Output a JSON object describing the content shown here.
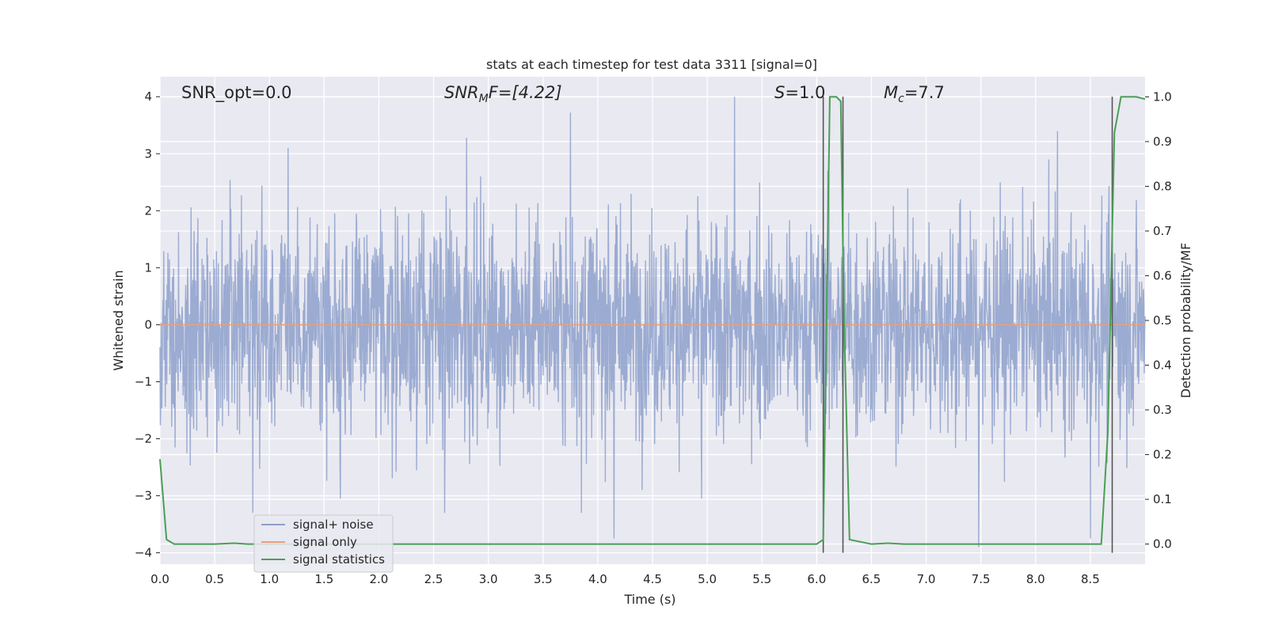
{
  "chart_data": {
    "type": "line",
    "title": "stats at each timestep for test data 3311 [signal=0]",
    "xlabel": "Time (s)",
    "ylabel": "Whitened strain",
    "y2label": "Detection probability/MF",
    "xlim": [
      0.0,
      9.0
    ],
    "ylim": [
      -4.2,
      4.35
    ],
    "y2lim": [
      -0.045,
      1.045
    ],
    "x_ticks": [
      "0.0",
      "0.5",
      "1.0",
      "1.5",
      "2.0",
      "2.5",
      "3.0",
      "3.5",
      "4.0",
      "4.5",
      "5.0",
      "5.5",
      "6.0",
      "6.5",
      "7.0",
      "7.5",
      "8.0",
      "8.5"
    ],
    "y_ticks": [
      "4",
      "3",
      "2",
      "1",
      "0",
      "−1",
      "−2",
      "−3",
      "−4"
    ],
    "y2_ticks": [
      "1.0",
      "0.9",
      "0.8",
      "0.7",
      "0.6",
      "0.5",
      "0.4",
      "0.3",
      "0.2",
      "0.1",
      "0.0"
    ],
    "grid": true,
    "legend_position": "lower-left",
    "annotations": {
      "snr_opt": "SNR_opt=0.0",
      "snr_mf_main": "SNR",
      "snr_mf_sub": "M",
      "snr_mf_rest": "F=[4.22]",
      "s_label": "S",
      "s_value": "=1.0",
      "mc_main": "M",
      "mc_sub": "c",
      "mc_value": "=7.7"
    },
    "series": [
      {
        "name": "signal+ noise",
        "color": "#8da0cb",
        "axis": "left",
        "style": "dense noisy strain, roughly ±1.7 band with spikes to ±3.7",
        "spike_peaks": [
          {
            "x": 0.85,
            "y": -3.3
          },
          {
            "x": 1.17,
            "y": 3.1
          },
          {
            "x": 1.65,
            "y": -3.05
          },
          {
            "x": 2.8,
            "y": 3.28
          },
          {
            "x": 2.6,
            "y": -3.3
          },
          {
            "x": 3.75,
            "y": 3.72
          },
          {
            "x": 3.85,
            "y": -3.3
          },
          {
            "x": 4.15,
            "y": -3.75
          },
          {
            "x": 5.25,
            "y": 4.0
          },
          {
            "x": 4.95,
            "y": -3.05
          },
          {
            "x": 6.1,
            "y": 2.7
          },
          {
            "x": 7.48,
            "y": -3.9
          },
          {
            "x": 8.2,
            "y": 3.4
          },
          {
            "x": 8.5,
            "y": -3.75
          }
        ]
      },
      {
        "name": "signal only",
        "color": "#e8a07a",
        "axis": "left",
        "x": [
          0.0,
          9.0
        ],
        "y": [
          0.0,
          0.0
        ]
      },
      {
        "name": "signal statistics",
        "color": "#4a9f55",
        "axis": "right",
        "x": [
          0.0,
          0.06,
          0.13,
          0.5,
          0.68,
          0.8,
          6.0,
          6.06,
          6.12,
          6.18,
          6.22,
          6.25,
          6.3,
          6.5,
          6.65,
          6.8,
          8.6,
          8.66,
          8.72,
          8.78,
          8.85,
          8.92,
          9.0
        ],
        "y": [
          0.19,
          0.01,
          0.0,
          0.0,
          0.002,
          0.0,
          0.0,
          0.01,
          1.0,
          1.0,
          0.99,
          0.5,
          0.01,
          0.0,
          0.002,
          0.0,
          0.0,
          0.25,
          0.92,
          1.0,
          1.0,
          1.0,
          0.995
        ]
      }
    ],
    "vertical_markers": [
      {
        "x": 6.06,
        "y_from": -4.0,
        "y_to": 4.0
      },
      {
        "x": 6.24,
        "y_from": -4.0,
        "y_to": 4.0
      },
      {
        "x": 8.7,
        "y_from": -4.0,
        "y_to": 4.0
      }
    ]
  },
  "colors": {
    "plot_background": "#e9e9f1",
    "grid": "#ffffff",
    "marker": "#555555",
    "noise_fill": "#9aabd0"
  }
}
